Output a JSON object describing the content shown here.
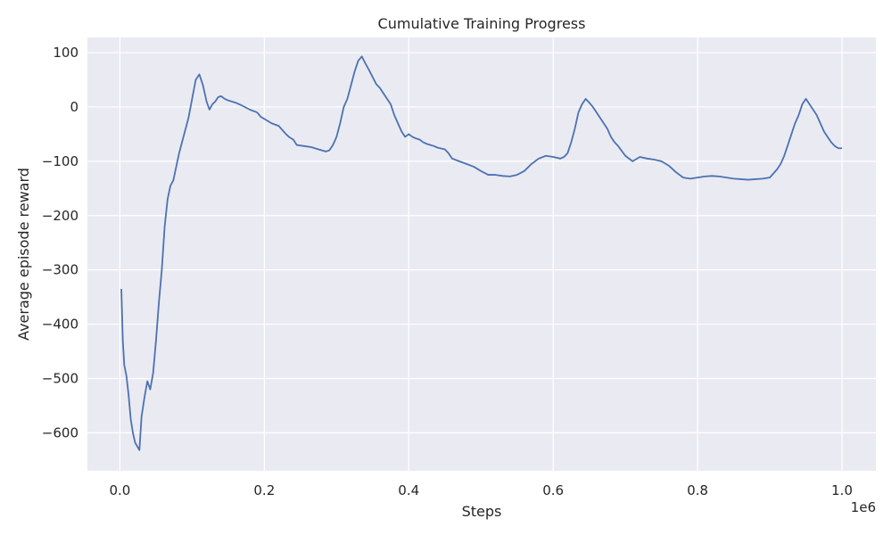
{
  "chart_data": {
    "type": "line",
    "title": "Cumulative Training Progress",
    "xlabel": "Steps",
    "ylabel": "Average episode reward",
    "x_offset_label": "1e6",
    "xlim": [
      -45000,
      1047000
    ],
    "ylim": [
      -670,
      128
    ],
    "x_ticks": [
      0,
      200000,
      400000,
      600000,
      800000,
      1000000
    ],
    "x_tick_labels": [
      "0.0",
      "0.2",
      "0.4",
      "0.6",
      "0.8",
      "1.0"
    ],
    "y_ticks": [
      -600,
      -500,
      -400,
      -300,
      -200,
      -100,
      0,
      100
    ],
    "y_tick_labels": [
      "−600",
      "−500",
      "−400",
      "−300",
      "−200",
      "−100",
      "0",
      "100"
    ],
    "grid": true,
    "background": "#eaeaf2",
    "series": [
      {
        "color": "#4c72b0",
        "x": [
          2000,
          4000,
          6000,
          9000,
          12000,
          15000,
          18000,
          21000,
          24000,
          27000,
          30000,
          34000,
          38000,
          42000,
          46000,
          50000,
          54000,
          58000,
          62000,
          66000,
          70000,
          74000,
          78000,
          82000,
          86000,
          90000,
          95000,
          100000,
          105000,
          110000,
          115000,
          120000,
          124000,
          128000,
          132000,
          136000,
          140000,
          145000,
          150000,
          155000,
          160000,
          170000,
          180000,
          190000,
          195000,
          200000,
          210000,
          220000,
          230000,
          234000,
          240000,
          245000,
          255000,
          265000,
          275000,
          285000,
          290000,
          295000,
          300000,
          305000,
          310000,
          315000,
          320000,
          325000,
          330000,
          335000,
          340000,
          345000,
          350000,
          355000,
          360000,
          365000,
          370000,
          375000,
          380000,
          385000,
          390000,
          395000,
          400000,
          405000,
          410000,
          415000,
          420000,
          425000,
          430000,
          435000,
          440000,
          450000,
          455000,
          460000,
          470000,
          480000,
          490000,
          500000,
          510000,
          520000,
          530000,
          540000,
          550000,
          560000,
          570000,
          580000,
          590000,
          600000,
          610000,
          615000,
          620000,
          625000,
          630000,
          635000,
          640000,
          645000,
          650000,
          655000,
          660000,
          665000,
          670000,
          675000,
          680000,
          685000,
          690000,
          700000,
          710000,
          720000,
          730000,
          740000,
          750000,
          760000,
          770000,
          780000,
          790000,
          800000,
          810000,
          820000,
          830000,
          840000,
          850000,
          860000,
          870000,
          880000,
          890000,
          900000,
          910000,
          915000,
          920000,
          925000,
          930000,
          935000,
          940000,
          945000,
          950000,
          955000,
          960000,
          965000,
          970000,
          975000,
          980000,
          985000,
          990000,
          995000,
          1000000
        ],
        "y": [
          -335,
          -430,
          -475,
          -495,
          -530,
          -575,
          -600,
          -618,
          -625,
          -632,
          -570,
          -535,
          -505,
          -520,
          -490,
          -430,
          -360,
          -300,
          -220,
          -170,
          -145,
          -135,
          -110,
          -85,
          -65,
          -45,
          -20,
          15,
          50,
          60,
          40,
          10,
          -5,
          5,
          10,
          18,
          20,
          15,
          12,
          10,
          8,
          2,
          -5,
          -10,
          -18,
          -22,
          -30,
          -35,
          -50,
          -55,
          -60,
          -70,
          -72,
          -74,
          -78,
          -82,
          -80,
          -70,
          -55,
          -30,
          0,
          15,
          40,
          65,
          85,
          93,
          80,
          68,
          55,
          42,
          35,
          25,
          15,
          5,
          -15,
          -30,
          -45,
          -55,
          -50,
          -55,
          -58,
          -60,
          -65,
          -68,
          -70,
          -72,
          -75,
          -78,
          -85,
          -95,
          -100,
          -105,
          -110,
          -118,
          -125,
          -125,
          -127,
          -128,
          -125,
          -118,
          -105,
          -95,
          -90,
          -92,
          -95,
          -92,
          -85,
          -65,
          -40,
          -10,
          5,
          15,
          8,
          0,
          -10,
          -20,
          -30,
          -40,
          -55,
          -65,
          -72,
          -90,
          -100,
          -92,
          -95,
          -97,
          -100,
          -108,
          -120,
          -130,
          -132,
          -130,
          -128,
          -127,
          -128,
          -130,
          -132,
          -133,
          -134,
          -133,
          -132,
          -130,
          -115,
          -105,
          -90,
          -70,
          -50,
          -30,
          -15,
          5,
          15,
          5,
          -5,
          -15,
          -30,
          -45,
          -55,
          -65,
          -72,
          -76,
          -76
        ]
      }
    ]
  }
}
